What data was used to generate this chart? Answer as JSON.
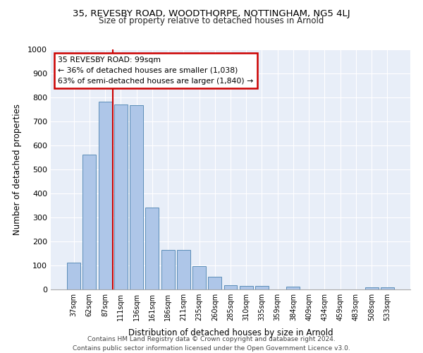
{
  "title1": "35, REVESBY ROAD, WOODTHORPE, NOTTINGHAM, NG5 4LJ",
  "title2": "Size of property relative to detached houses in Arnold",
  "xlabel": "Distribution of detached houses by size in Arnold",
  "ylabel": "Number of detached properties",
  "footer1": "Contains HM Land Registry data © Crown copyright and database right 2024.",
  "footer2": "Contains public sector information licensed under the Open Government Licence v3.0.",
  "annotation_line1": "35 REVESBY ROAD: 99sqm",
  "annotation_line2": "← 36% of detached houses are smaller (1,038)",
  "annotation_line3": "63% of semi-detached houses are larger (1,840) →",
  "bar_color": "#aec6e8",
  "bar_edge_color": "#5b8db8",
  "vline_color": "#cc0000",
  "annotation_box_edge_color": "#cc0000",
  "background_color": "#e8eef8",
  "grid_color": "#ffffff",
  "categories": [
    "37sqm",
    "62sqm",
    "87sqm",
    "111sqm",
    "136sqm",
    "161sqm",
    "186sqm",
    "211sqm",
    "235sqm",
    "260sqm",
    "285sqm",
    "310sqm",
    "335sqm",
    "359sqm",
    "384sqm",
    "409sqm",
    "434sqm",
    "459sqm",
    "483sqm",
    "508sqm",
    "533sqm"
  ],
  "values": [
    113,
    562,
    783,
    770,
    769,
    342,
    165,
    165,
    97,
    53,
    18,
    15,
    15,
    0,
    12,
    0,
    0,
    0,
    0,
    8,
    8
  ],
  "ylim": [
    0,
    1000
  ],
  "yticks": [
    0,
    100,
    200,
    300,
    400,
    500,
    600,
    700,
    800,
    900,
    1000
  ],
  "vline_x_index": 2.5
}
